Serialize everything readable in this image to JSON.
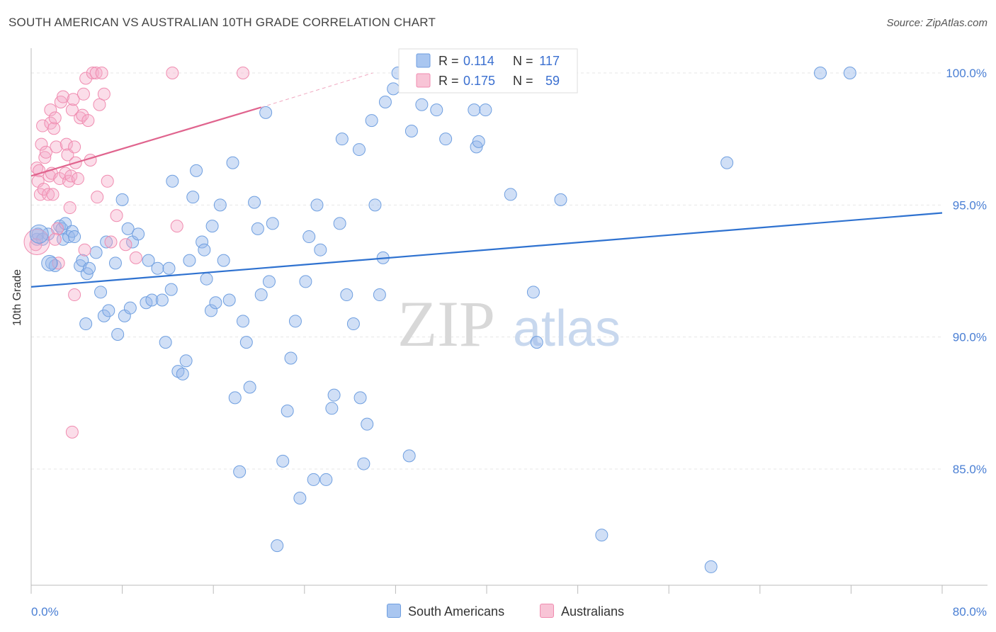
{
  "title": "SOUTH AMERICAN VS AUSTRALIAN 10TH GRADE CORRELATION CHART",
  "source": "Source: ZipAtlas.com",
  "watermark": {
    "zip": "ZIP",
    "atlas": "atlas"
  },
  "chart_data": {
    "type": "scatter",
    "ylabel": "10th Grade",
    "xlim": [
      0,
      80
    ],
    "ylim": [
      80.6,
      101.1
    ],
    "x_tick_labels": [
      "0.0%",
      "80.0%"
    ],
    "y_ticks": [
      85,
      90,
      95,
      100
    ],
    "y_tick_labels": [
      "85.0%",
      "90.0%",
      "95.0%",
      "100.0%"
    ],
    "grid": true,
    "legend": {
      "position": "top-center",
      "entries": [
        {
          "r_label": "R = ",
          "r": "0.114",
          "n_label": "N = ",
          "n": "117"
        },
        {
          "r_label": "R = ",
          "r": "0.175",
          "n_label": "N = ",
          "n": "59"
        }
      ]
    },
    "series": [
      {
        "name": "South Americans",
        "color": "#6f9fe0",
        "trend": {
          "x": [
            0,
            80
          ],
          "y": [
            91.9,
            94.7
          ],
          "color": "#2f72d0"
        },
        "points": [
          [
            0.5,
            93.7
          ],
          [
            0.6,
            93.9
          ],
          [
            1.0,
            93.7
          ],
          [
            1.5,
            93.9
          ],
          [
            1.8,
            92.8
          ],
          [
            2.1,
            92.7
          ],
          [
            2.5,
            94.2
          ],
          [
            2.7,
            94.1
          ],
          [
            2.8,
            93.7
          ],
          [
            3.0,
            94.3
          ],
          [
            3.3,
            93.8
          ],
          [
            3.6,
            94.0
          ],
          [
            3.8,
            93.8
          ],
          [
            4.3,
            92.7
          ],
          [
            4.5,
            92.9
          ],
          [
            4.9,
            92.4
          ],
          [
            5.1,
            92.6
          ],
          [
            4.8,
            90.5
          ],
          [
            5.7,
            93.2
          ],
          [
            6.1,
            91.7
          ],
          [
            6.4,
            90.8
          ],
          [
            6.6,
            93.6
          ],
          [
            6.8,
            91.0
          ],
          [
            7.4,
            92.8
          ],
          [
            7.6,
            90.1
          ],
          [
            8.0,
            95.2
          ],
          [
            8.2,
            90.8
          ],
          [
            8.5,
            94.1
          ],
          [
            8.7,
            91.1
          ],
          [
            8.9,
            93.6
          ],
          [
            9.4,
            93.9
          ],
          [
            10.1,
            91.3
          ],
          [
            10.3,
            92.9
          ],
          [
            10.6,
            91.4
          ],
          [
            11.1,
            92.6
          ],
          [
            11.5,
            91.4
          ],
          [
            11.8,
            89.8
          ],
          [
            12.1,
            92.6
          ],
          [
            12.3,
            91.8
          ],
          [
            12.4,
            95.9
          ],
          [
            12.9,
            88.7
          ],
          [
            13.3,
            88.6
          ],
          [
            13.6,
            89.1
          ],
          [
            13.9,
            92.9
          ],
          [
            14.2,
            95.3
          ],
          [
            14.5,
            96.3
          ],
          [
            15.0,
            93.6
          ],
          [
            15.2,
            93.3
          ],
          [
            15.4,
            92.2
          ],
          [
            15.9,
            94.2
          ],
          [
            15.8,
            91.0
          ],
          [
            16.2,
            91.3
          ],
          [
            16.6,
            95.0
          ],
          [
            16.9,
            92.9
          ],
          [
            17.4,
            91.4
          ],
          [
            17.7,
            96.6
          ],
          [
            17.9,
            87.7
          ],
          [
            18.3,
            84.9
          ],
          [
            18.6,
            90.6
          ],
          [
            18.9,
            89.8
          ],
          [
            19.2,
            88.1
          ],
          [
            19.6,
            95.1
          ],
          [
            19.9,
            94.1
          ],
          [
            20.2,
            91.6
          ],
          [
            20.6,
            98.5
          ],
          [
            20.9,
            92.1
          ],
          [
            21.2,
            94.3
          ],
          [
            21.6,
            82.1
          ],
          [
            22.1,
            85.3
          ],
          [
            22.5,
            87.2
          ],
          [
            22.8,
            89.2
          ],
          [
            23.2,
            90.6
          ],
          [
            23.6,
            83.9
          ],
          [
            24.1,
            92.1
          ],
          [
            24.4,
            93.8
          ],
          [
            24.8,
            84.6
          ],
          [
            25.1,
            95.0
          ],
          [
            25.4,
            93.3
          ],
          [
            25.9,
            84.6
          ],
          [
            26.4,
            87.3
          ],
          [
            26.6,
            87.8
          ],
          [
            27.1,
            94.3
          ],
          [
            27.3,
            97.5
          ],
          [
            27.7,
            91.6
          ],
          [
            28.3,
            90.5
          ],
          [
            28.8,
            97.1
          ],
          [
            28.9,
            87.7
          ],
          [
            29.2,
            85.2
          ],
          [
            29.5,
            86.7
          ],
          [
            29.9,
            98.2
          ],
          [
            30.2,
            95.0
          ],
          [
            30.6,
            91.6
          ],
          [
            30.9,
            93.0
          ],
          [
            31.1,
            98.9
          ],
          [
            31.8,
            99.4
          ],
          [
            32.2,
            100.0
          ],
          [
            33.2,
            85.5
          ],
          [
            33.4,
            97.8
          ],
          [
            34.3,
            98.8
          ],
          [
            35.2,
            100.0
          ],
          [
            35.6,
            98.6
          ],
          [
            36.4,
            97.5
          ],
          [
            37.0,
            99.7
          ],
          [
            38.1,
            100.0
          ],
          [
            38.9,
            98.6
          ],
          [
            39.1,
            97.2
          ],
          [
            39.3,
            97.4
          ],
          [
            39.9,
            98.6
          ],
          [
            42.1,
            95.4
          ],
          [
            44.1,
            91.7
          ],
          [
            44.4,
            89.8
          ],
          [
            46.5,
            95.2
          ],
          [
            50.1,
            82.5
          ],
          [
            59.7,
            81.3
          ],
          [
            61.1,
            96.6
          ],
          [
            69.3,
            100.0
          ],
          [
            71.9,
            100.0
          ]
        ]
      },
      {
        "name": "Australians",
        "color": "#f08cb0",
        "trend": {
          "x": [
            0,
            20.2
          ],
          "y": [
            96.1,
            98.7
          ],
          "color": "#e0648e"
        },
        "trend_extension": {
          "x": [
            20.2,
            30.0
          ],
          "y": [
            98.7,
            100.0
          ]
        },
        "points": [
          [
            0.4,
            93.5
          ],
          [
            0.5,
            96.4
          ],
          [
            0.6,
            95.9
          ],
          [
            0.7,
            96.3
          ],
          [
            0.8,
            95.4
          ],
          [
            0.9,
            97.3
          ],
          [
            1.0,
            98.0
          ],
          [
            1.1,
            95.6
          ],
          [
            1.2,
            96.8
          ],
          [
            1.3,
            97.0
          ],
          [
            1.5,
            95.4
          ],
          [
            1.6,
            96.1
          ],
          [
            1.7,
            98.1
          ],
          [
            1.7,
            98.6
          ],
          [
            1.8,
            96.2
          ],
          [
            1.9,
            95.4
          ],
          [
            2.0,
            97.9
          ],
          [
            2.1,
            98.3
          ],
          [
            2.2,
            97.2
          ],
          [
            2.3,
            94.1
          ],
          [
            2.4,
            92.8
          ],
          [
            2.5,
            96.0
          ],
          [
            2.6,
            98.9
          ],
          [
            2.8,
            99.1
          ],
          [
            3.0,
            96.2
          ],
          [
            3.1,
            97.3
          ],
          [
            3.2,
            96.9
          ],
          [
            3.3,
            95.9
          ],
          [
            3.4,
            94.9
          ],
          [
            3.5,
            96.1
          ],
          [
            3.6,
            98.6
          ],
          [
            3.7,
            99.0
          ],
          [
            3.8,
            97.2
          ],
          [
            3.9,
            96.6
          ],
          [
            4.1,
            96.0
          ],
          [
            4.3,
            98.3
          ],
          [
            4.5,
            98.4
          ],
          [
            4.6,
            99.2
          ],
          [
            4.8,
            99.8
          ],
          [
            5.0,
            98.2
          ],
          [
            5.2,
            96.7
          ],
          [
            5.4,
            100.0
          ],
          [
            5.7,
            100.0
          ],
          [
            5.8,
            95.3
          ],
          [
            6.0,
            98.8
          ],
          [
            6.2,
            100.0
          ],
          [
            6.4,
            99.2
          ],
          [
            6.7,
            95.9
          ],
          [
            7.0,
            93.6
          ],
          [
            7.5,
            94.6
          ],
          [
            8.3,
            93.5
          ],
          [
            9.2,
            93.0
          ],
          [
            12.4,
            100.0
          ],
          [
            12.8,
            94.2
          ],
          [
            18.6,
            100.0
          ],
          [
            3.8,
            91.6
          ],
          [
            3.6,
            86.4
          ],
          [
            4.7,
            93.3
          ],
          [
            2.1,
            93.7
          ]
        ]
      }
    ]
  },
  "bottom_legend": [
    {
      "label": "South Americans",
      "color": "#a9c6f0",
      "border": "#6f9fe0"
    },
    {
      "label": "Australians",
      "color": "#f8c4d6",
      "border": "#f08cb0"
    }
  ]
}
